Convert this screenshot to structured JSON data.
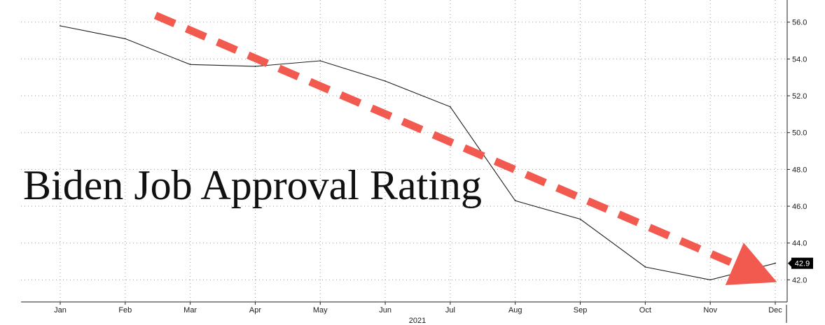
{
  "chart_data": {
    "type": "line",
    "title": "Biden Job Approval Rating",
    "x_group_label": "2021",
    "categories": [
      "Jan",
      "Feb",
      "Mar",
      "Apr",
      "May",
      "Jun",
      "Jul",
      "Aug",
      "Sep",
      "Oct",
      "Nov",
      "Dec"
    ],
    "series": [
      {
        "values": [
          55.8,
          55.1,
          53.7,
          53.6,
          53.9,
          52.8,
          51.4,
          46.3,
          45.3,
          42.7,
          42.0,
          42.9
        ]
      }
    ],
    "y_ticks": [
      "42.0",
      "44.0",
      "46.0",
      "48.0",
      "50.0",
      "52.0",
      "54.0",
      "56.0"
    ],
    "ylim": [
      40.8,
      56.9
    ],
    "y_axis_position": "right",
    "grid": true,
    "last_value_label": "42.9",
    "annotation": {
      "type": "trend-arrow",
      "color": "#f25a4f",
      "direction": "down"
    }
  }
}
